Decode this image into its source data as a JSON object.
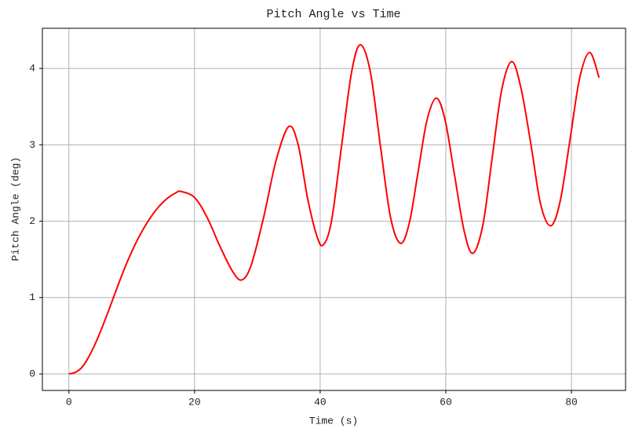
{
  "chart_data": {
    "type": "line",
    "title": "Pitch Angle vs Time",
    "xlabel": "Time (s)",
    "ylabel": "Pitch Angle (deg)",
    "x": [
      0,
      1,
      2,
      3,
      4,
      5,
      6,
      7,
      8,
      9,
      10,
      11,
      12,
      13,
      14,
      15,
      16,
      17,
      17.8,
      20,
      22,
      24,
      26,
      27.5,
      29,
      31,
      33,
      35,
      36.5,
      38,
      39.5,
      40.5,
      41.8,
      43.4,
      45,
      46.4,
      48,
      49.6,
      51.2,
      52.8,
      54.2,
      55.6,
      57,
      58.5,
      59.9,
      61.4,
      62.9,
      64.3,
      65.9,
      67.4,
      68.9,
      70.5,
      72,
      73.6,
      75.1,
      76.7,
      78.2,
      79.8,
      81.3,
      82.9,
      84.4
    ],
    "series": [
      {
        "name": "Pitch Angle",
        "color": "#ff0000",
        "values": [
          0,
          0.02,
          0.08,
          0.2,
          0.36,
          0.55,
          0.76,
          0.98,
          1.2,
          1.41,
          1.6,
          1.77,
          1.92,
          2.05,
          2.16,
          2.25,
          2.32,
          2.37,
          2.39,
          2.31,
          2.05,
          1.68,
          1.35,
          1.23,
          1.42,
          2.05,
          2.8,
          3.24,
          3.0,
          2.3,
          1.8,
          1.69,
          2.0,
          2.98,
          3.95,
          4.31,
          3.95,
          2.98,
          2.05,
          1.71,
          1.98,
          2.65,
          3.32,
          3.61,
          3.32,
          2.6,
          1.88,
          1.58,
          1.95,
          2.84,
          3.72,
          4.09,
          3.73,
          2.98,
          2.22,
          1.94,
          2.26,
          3.08,
          3.87,
          4.21,
          3.88
        ]
      }
    ],
    "xlim": [
      -4.22,
      88.62
    ],
    "ylim": [
      -0.216,
      4.526
    ],
    "xticks": [
      0,
      20,
      40,
      60,
      80
    ],
    "yticks": [
      0,
      1,
      2,
      3,
      4
    ],
    "grid": true
  }
}
